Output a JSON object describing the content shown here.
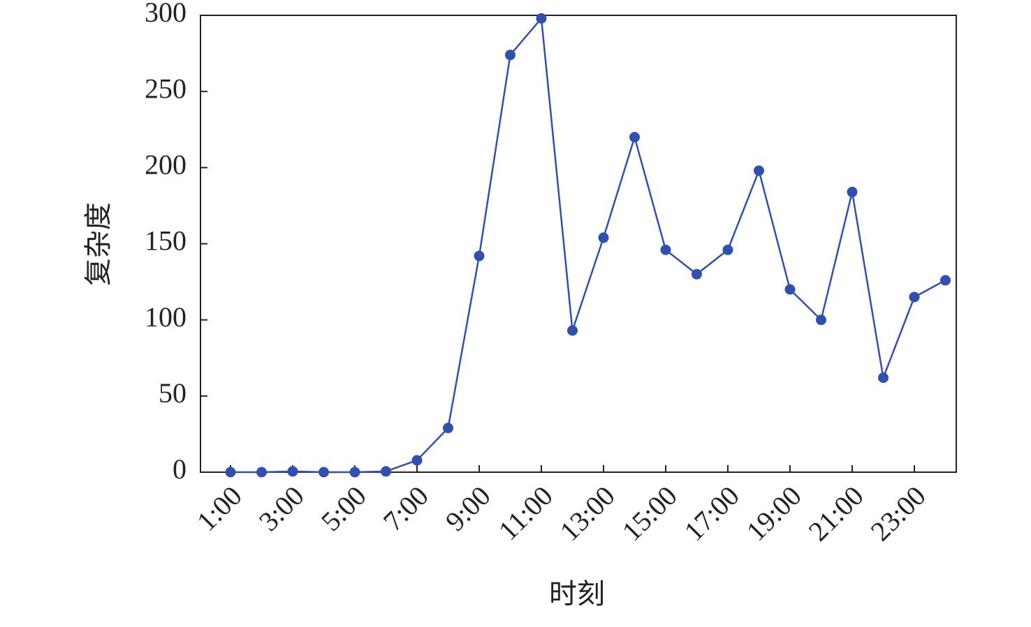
{
  "chart_data": {
    "type": "line",
    "x_label": "时刻",
    "y_label": "复杂度",
    "categories": [
      "1:00",
      null,
      "3:00",
      null,
      "5:00",
      null,
      "7:00",
      null,
      "9:00",
      null,
      "11:00",
      null,
      "13:00",
      null,
      "15:00",
      null,
      "17:00",
      null,
      "19:00",
      null,
      "21:00",
      null,
      "23:00",
      null
    ],
    "series": [
      {
        "color": "#3050b0",
        "values": [
          0,
          0,
          0.5,
          0,
          0,
          0.5,
          7.8,
          29,
          142,
          274,
          298,
          93,
          154,
          220,
          146,
          130,
          146,
          198,
          120,
          100,
          184,
          62,
          115,
          126
        ]
      }
    ],
    "ylim": [
      0,
      300
    ],
    "yticks": [
      0,
      50,
      100,
      150,
      200,
      250,
      300
    ]
  }
}
